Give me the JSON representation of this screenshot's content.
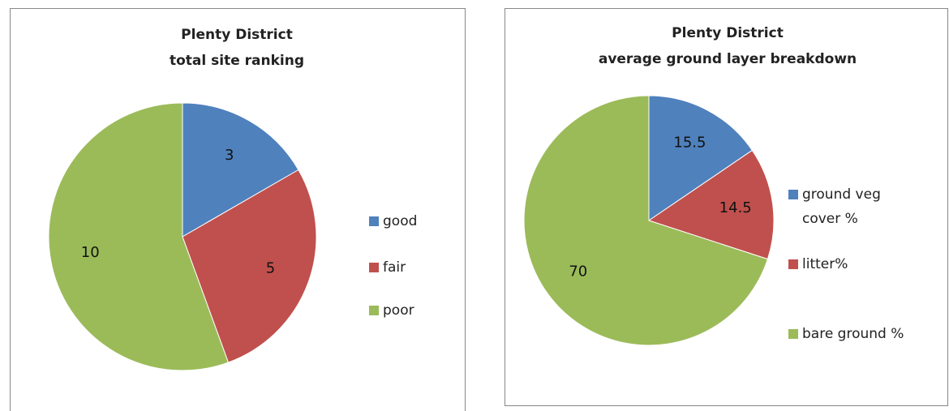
{
  "chart_data": [
    {
      "type": "pie",
      "title": [
        "Plenty District",
        "total site ranking"
      ],
      "categories": [
        "good",
        "fair",
        "poor"
      ],
      "values": [
        3,
        5,
        10
      ],
      "colors": [
        "#4f81bd",
        "#c0504d",
        "#9bbb59"
      ],
      "legend": "right"
    },
    {
      "type": "pie",
      "title": [
        "Plenty District",
        "average ground  layer breakdown"
      ],
      "categories": [
        "ground veg cover %",
        "litter%",
        "bare ground %"
      ],
      "values": [
        15.5,
        14.5,
        70
      ],
      "colors": [
        "#4f81bd",
        "#c0504d",
        "#9bbb59"
      ],
      "legend": "right"
    }
  ]
}
